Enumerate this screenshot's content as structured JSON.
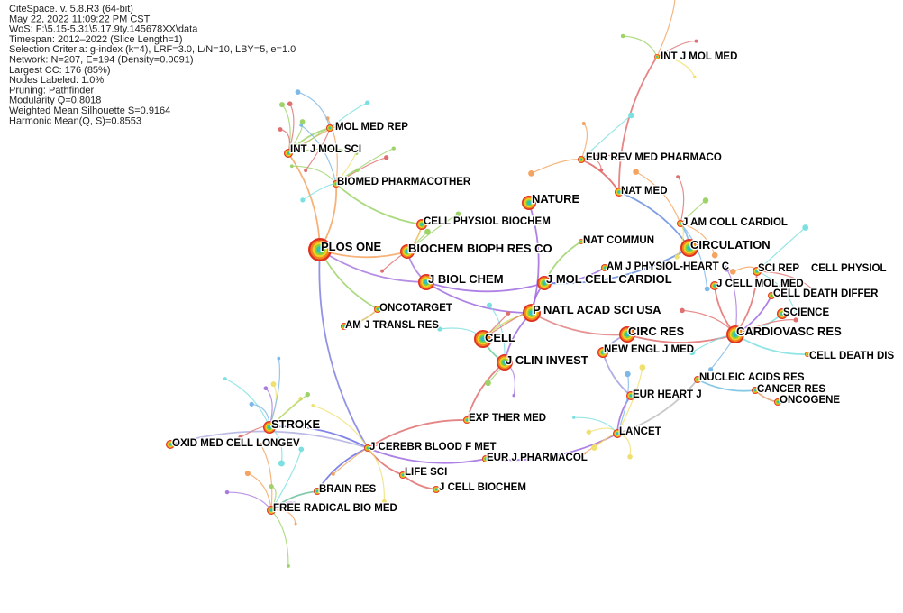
{
  "header": {
    "lines": [
      "CiteSpace. v. 5.8.R3 (64-bit)",
      "May 22, 2022 11:09:22 PM CST",
      "WoS: F:\\5.15-5.31\\5.17.9ty.145678XX\\data",
      "Timespan: 2012–2022 (Slice Length=1)",
      "Selection Criteria: g-index (k=4), LRF=3.0, L/N=10, LBY=5, e=1.0",
      "Network: N=207, E=194 (Density=0.0091)",
      "Largest CC: 176 (85%)",
      "Nodes Labeled: 1.0%",
      "Pruning: Pathfinder",
      "Modularity Q=0.8018",
      "Weighted Mean Silhouette S=0.9164",
      "Harmonic Mean(Q, S)=0.8553"
    ]
  },
  "nodes": [
    {
      "label": "INT J MOL MED"
    },
    {
      "label": "MOL MED REP"
    },
    {
      "label": "INT J MOL SCI"
    },
    {
      "label": "BIOMED PHARMACOTHER"
    },
    {
      "label": "EUR REV MED PHARMACO"
    },
    {
      "label": "NAT MED"
    },
    {
      "label": "NATURE"
    },
    {
      "label": "CELL PHYSIOL BIOCHEM"
    },
    {
      "label": "J AM COLL CARDIOL"
    },
    {
      "label": "NAT COMMUN"
    },
    {
      "label": "CIRCULATION"
    },
    {
      "label": "PLOS ONE"
    },
    {
      "label": "BIOCHEM BIOPH RES CO"
    },
    {
      "label": "AM J PHYSIOL-HEART C"
    },
    {
      "label": "SCI REP"
    },
    {
      "label": "J CELL MOL MED"
    },
    {
      "label": "J BIOL CHEM"
    },
    {
      "label": "J MOL CELL CARDIOL"
    },
    {
      "label": "CELL DEATH DIFFER"
    },
    {
      "label": "ONCOTARGET"
    },
    {
      "label": "SCIENCE"
    },
    {
      "label": "P NATL ACAD SCI USA"
    },
    {
      "label": "AM J TRANSL RES"
    },
    {
      "label": "CELL PHYSIOL"
    },
    {
      "label": "CIRC RES"
    },
    {
      "label": "CARDIOVASC RES"
    },
    {
      "label": "CELL"
    },
    {
      "label": "CELL DEATH DIS"
    },
    {
      "label": "NEW ENGL J MED"
    },
    {
      "label": "J CLIN INVEST"
    },
    {
      "label": "NUCLEIC ACIDS RES"
    },
    {
      "label": "CANCER RES"
    },
    {
      "label": "EUR HEART J"
    },
    {
      "label": "ONCOGENE"
    },
    {
      "label": "EXP THER MED"
    },
    {
      "label": "STROKE"
    },
    {
      "label": "LANCET"
    },
    {
      "label": "OXID MED CELL LONGEV"
    },
    {
      "label": "J CEREBR BLOOD F MET"
    },
    {
      "label": "EUR J PHARMACOL"
    },
    {
      "label": "LIFE SCI"
    },
    {
      "label": "J CELL BIOCHEM"
    },
    {
      "label": "BRAIN RES"
    },
    {
      "label": "FREE RADICAL BIO MED"
    }
  ]
}
